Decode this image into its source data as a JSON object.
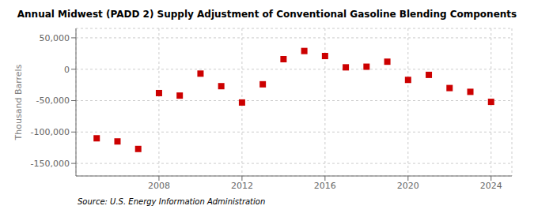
{
  "chart_data": {
    "type": "scatter",
    "title": "Annual Midwest (PADD 2) Supply Adjustment of Conventional Gasoline Blending Components",
    "y_label": "Thousand Barrels",
    "annotations": [
      "Source: U.S. Energy Information Administration"
    ],
    "x": [
      2005,
      2006,
      2007,
      2008,
      2009,
      2010,
      2011,
      2012,
      2013,
      2014,
      2015,
      2016,
      2017,
      2018,
      2019,
      2020,
      2021,
      2022,
      2023,
      2024
    ],
    "values": [
      -110000,
      -115000,
      -127000,
      -38000,
      -42000,
      -7000,
      -27000,
      -53000,
      -24000,
      16000,
      29000,
      21000,
      3000,
      4000,
      12000,
      -17000,
      -9000,
      -30000,
      -36000,
      -52000
    ],
    "color": "#cc0000",
    "marker": "square",
    "xlim": [
      2004,
      2025
    ],
    "xticks": [
      2008,
      2012,
      2016,
      2020,
      2024
    ],
    "ylim": [
      -170000,
      65000
    ],
    "yticks": [
      {
        "value": -150000,
        "label": "-150,000"
      },
      {
        "value": -100000,
        "label": "-100,000"
      },
      {
        "value": -50000,
        "label": "-50,000"
      },
      0,
      {
        "value": 50000,
        "label": "50,000"
      }
    ],
    "grid": true
  }
}
